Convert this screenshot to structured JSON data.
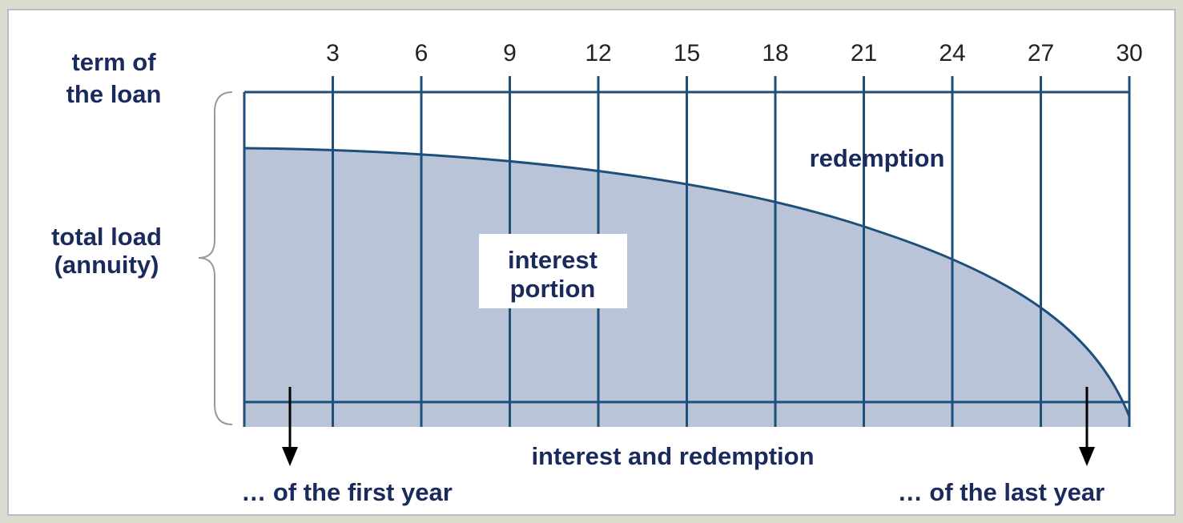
{
  "labels": {
    "term": [
      "term of",
      "the loan"
    ],
    "total": [
      "total load",
      "(annuity)"
    ],
    "redemption": "redemption",
    "interest": [
      "interest",
      "portion"
    ],
    "bottom": "interest and redemption",
    "first": "… of the first year",
    "last": "… of the last year"
  },
  "ticks": [
    3,
    6,
    9,
    12,
    15,
    18,
    21,
    24,
    27,
    30
  ]
}
